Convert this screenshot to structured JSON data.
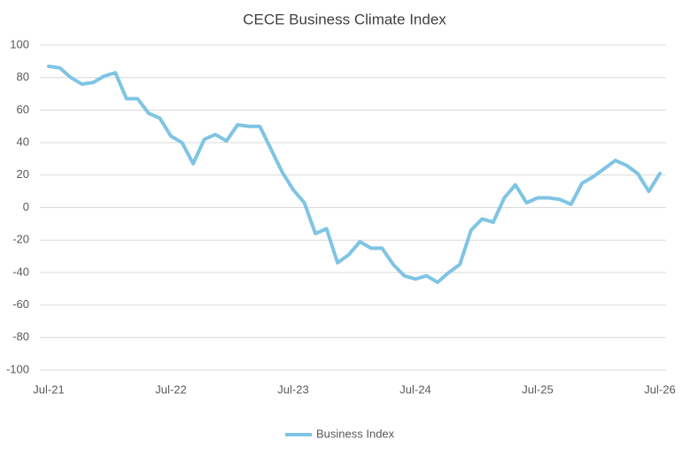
{
  "chart_data": {
    "type": "line",
    "title": "CECE Business Climate Index",
    "categories": [
      "Jul-21",
      null,
      null,
      null,
      null,
      null,
      null,
      null,
      null,
      null,
      null,
      "Jul-22",
      null,
      null,
      null,
      null,
      null,
      null,
      null,
      null,
      null,
      null,
      "Jul-23",
      null,
      null,
      null,
      null,
      null,
      null,
      null,
      null,
      null,
      null,
      "Jul-24",
      null,
      null,
      null,
      null,
      null,
      null,
      null,
      null,
      null,
      null,
      "Jul-25",
      null,
      null,
      null,
      null,
      null,
      null,
      null,
      null,
      null,
      null,
      "Jul-26"
    ],
    "series": [
      {
        "name": "Business Index",
        "color": "#7fc4e4",
        "values": [
          87,
          86,
          80,
          76,
          77,
          81,
          83,
          67,
          67,
          58,
          55,
          44,
          40,
          27,
          42,
          45,
          41,
          51,
          50,
          50,
          36,
          22,
          11,
          3,
          -16,
          -13,
          -34,
          -29,
          -21,
          -25,
          -25,
          -35,
          -42,
          -44,
          -42,
          -46,
          -40,
          -35,
          -14,
          -7,
          -9,
          6,
          14,
          3,
          6,
          6,
          5,
          2,
          15,
          19,
          24,
          29,
          26,
          21,
          10,
          21
        ]
      }
    ],
    "ylim": [
      -100,
      100
    ],
    "yticks": [
      -100,
      -80,
      -60,
      -40,
      -20,
      0,
      20,
      40,
      60,
      80,
      100
    ],
    "grid": true,
    "legend": "bottom"
  }
}
